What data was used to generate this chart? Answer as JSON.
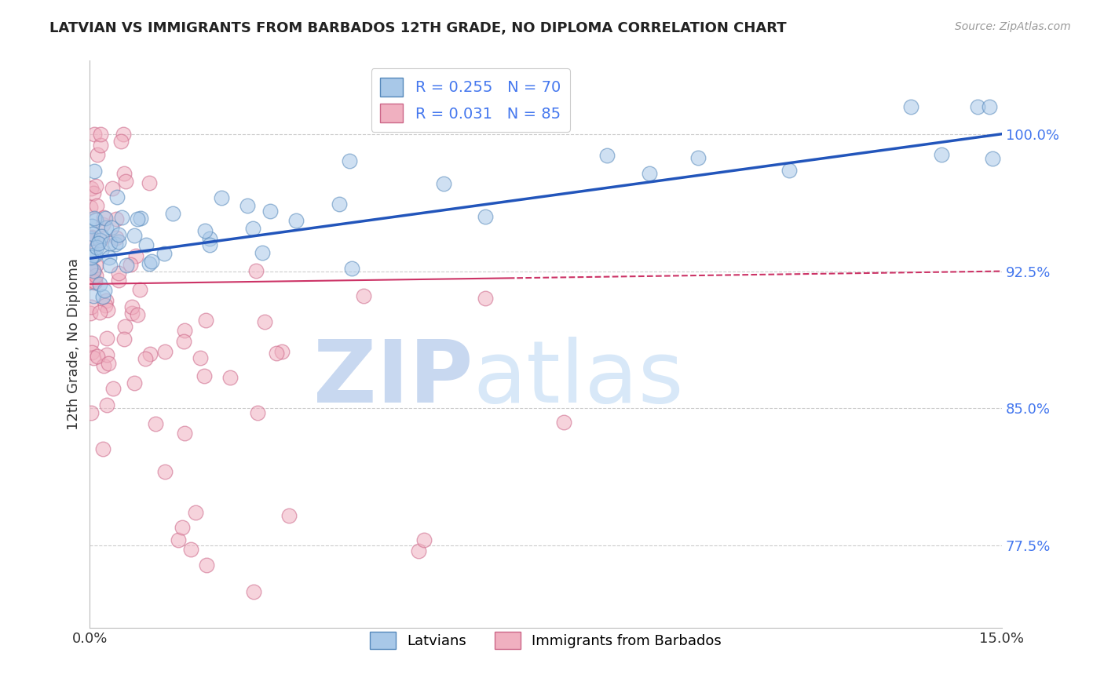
{
  "title": "LATVIAN VS IMMIGRANTS FROM BARBADOS 12TH GRADE, NO DIPLOMA CORRELATION CHART",
  "source": "Source: ZipAtlas.com",
  "ylabel": "12th Grade, No Diploma",
  "yticks": [
    77.5,
    85.0,
    92.5,
    100.0
  ],
  "ytick_labels": [
    "77.5%",
    "85.0%",
    "92.5%",
    "100.0%"
  ],
  "xmin": 0.0,
  "xmax": 15.0,
  "ymin": 73.0,
  "ymax": 104.0,
  "latvian_color": "#a8c8e8",
  "latvian_edge_color": "#5588bb",
  "barbados_color": "#f0b0c0",
  "barbados_edge_color": "#cc6688",
  "trend_latvian_color": "#2255bb",
  "trend_barbados_color": "#cc3366",
  "legend_R_latvian": "R = 0.255",
  "legend_N_latvian": "N = 70",
  "legend_R_barbados": "R = 0.031",
  "legend_N_barbados": "N = 85",
  "legend_label_latvians": "Latvians",
  "legend_label_barbados": "Immigrants from Barbados",
  "watermark_zip": "ZIP",
  "watermark_atlas": "atlas",
  "text_color_blue": "#4477ee",
  "text_color_dark": "#222222",
  "text_color_gray": "#999999",
  "lat_trend_x0": 0.0,
  "lat_trend_y0": 93.2,
  "lat_trend_x1": 15.0,
  "lat_trend_y1": 100.0,
  "bar_trend_x0": 0.0,
  "bar_trend_y0": 91.8,
  "bar_trend_x1": 15.0,
  "bar_trend_y1": 92.5
}
